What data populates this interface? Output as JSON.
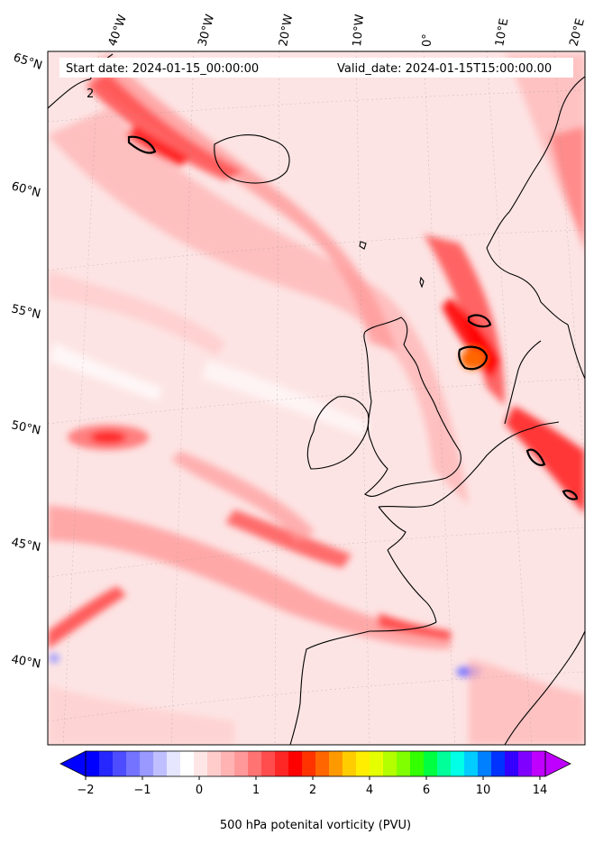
{
  "header": {
    "start_text": "Start date: 2024-01-15_00:00:00",
    "valid_text": "Valid_date: 2024-01-15T15:00:00.00"
  },
  "map": {
    "projection": "lambert-conic",
    "field": "500 hPa potential vorticity",
    "lon_labels": [
      "40°W",
      "30°W",
      "20°W",
      "10°W",
      "0°",
      "10°E",
      "20°E"
    ],
    "lat_labels": [
      "65°N",
      "60°N",
      "55°N",
      "50°N",
      "45°N",
      "40°N"
    ],
    "contour_label": "2",
    "background_color": "#fde4e4",
    "coastline_color": "#000000"
  },
  "colorbar": {
    "tick_labels": [
      "−2",
      "−1",
      "0",
      "1",
      "2",
      "4",
      "6",
      "10",
      "14"
    ],
    "colors": [
      "#0000ff",
      "#2626ff",
      "#4d4dff",
      "#7373ff",
      "#9999ff",
      "#bfbfff",
      "#e6e6ff",
      "#ffffff",
      "#ffe6e6",
      "#ffcccc",
      "#ffb3b3",
      "#ff9999",
      "#ff7373",
      "#ff4d4d",
      "#ff2626",
      "#ff0000",
      "#ff3300",
      "#ff6600",
      "#ff9900",
      "#ffcc00",
      "#ffee00",
      "#e6ff00",
      "#b3ff00",
      "#80ff00",
      "#33ff00",
      "#00ff40",
      "#00ff99",
      "#00ffe6",
      "#00ccff",
      "#0080ff",
      "#0033ff",
      "#3300ff",
      "#8000ff",
      "#bf00ff"
    ],
    "label": "500 hPa potenital vorticity (PVU)",
    "extend": "both"
  }
}
